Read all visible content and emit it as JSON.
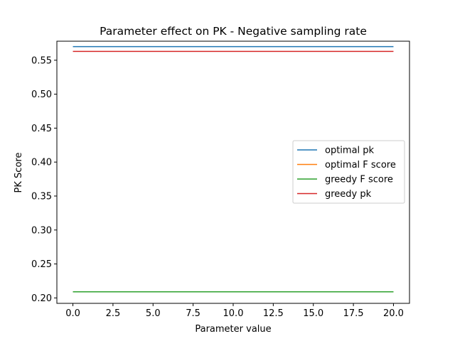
{
  "chart_data": {
    "type": "line",
    "title": "Parameter effect on PK - Negative sampling rate",
    "xlabel": "Parameter value",
    "ylabel": "PK Score",
    "xlim": [
      -1.0,
      21.0
    ],
    "ylim": [
      0.192,
      0.578
    ],
    "xticks": [
      0.0,
      2.5,
      5.0,
      7.5,
      10.0,
      12.5,
      15.0,
      17.5,
      20.0
    ],
    "xtick_labels": [
      "0.0",
      "2.5",
      "5.0",
      "7.5",
      "10.0",
      "12.5",
      "15.0",
      "17.5",
      "20.0"
    ],
    "yticks": [
      0.2,
      0.25,
      0.3,
      0.35,
      0.4,
      0.45,
      0.5,
      0.55
    ],
    "ytick_labels": [
      "0.20",
      "0.25",
      "0.30",
      "0.35",
      "0.40",
      "0.45",
      "0.50",
      "0.55"
    ],
    "grid": false,
    "legend_position": "center-right",
    "series": [
      {
        "name": "optimal pk",
        "color": "#1f77b4",
        "x": [
          0,
          20
        ],
        "y": [
          0.57,
          0.57
        ]
      },
      {
        "name": "optimal F score",
        "color": "#ff7f0e",
        "x": [
          0,
          20
        ],
        "y": [
          0.209,
          0.209
        ]
      },
      {
        "name": "greedy F score",
        "color": "#2ca02c",
        "x": [
          0,
          20
        ],
        "y": [
          0.209,
          0.209
        ]
      },
      {
        "name": "greedy pk",
        "color": "#d62728",
        "x": [
          0,
          20
        ],
        "y": [
          0.563,
          0.563
        ]
      }
    ]
  }
}
